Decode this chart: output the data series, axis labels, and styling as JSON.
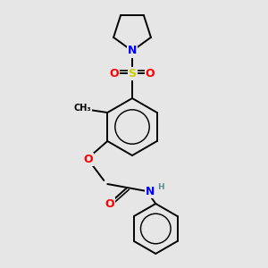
{
  "bg_color": "#e6e6e6",
  "bond_color": "#000000",
  "atom_colors": {
    "N": "#0000ff",
    "O": "#ff0000",
    "S": "#cccc00",
    "C": "#000000",
    "H": "#5a9090"
  },
  "font_size": 8,
  "line_width": 1.4,
  "fig_w": 3.0,
  "fig_h": 3.0,
  "dpi": 100
}
